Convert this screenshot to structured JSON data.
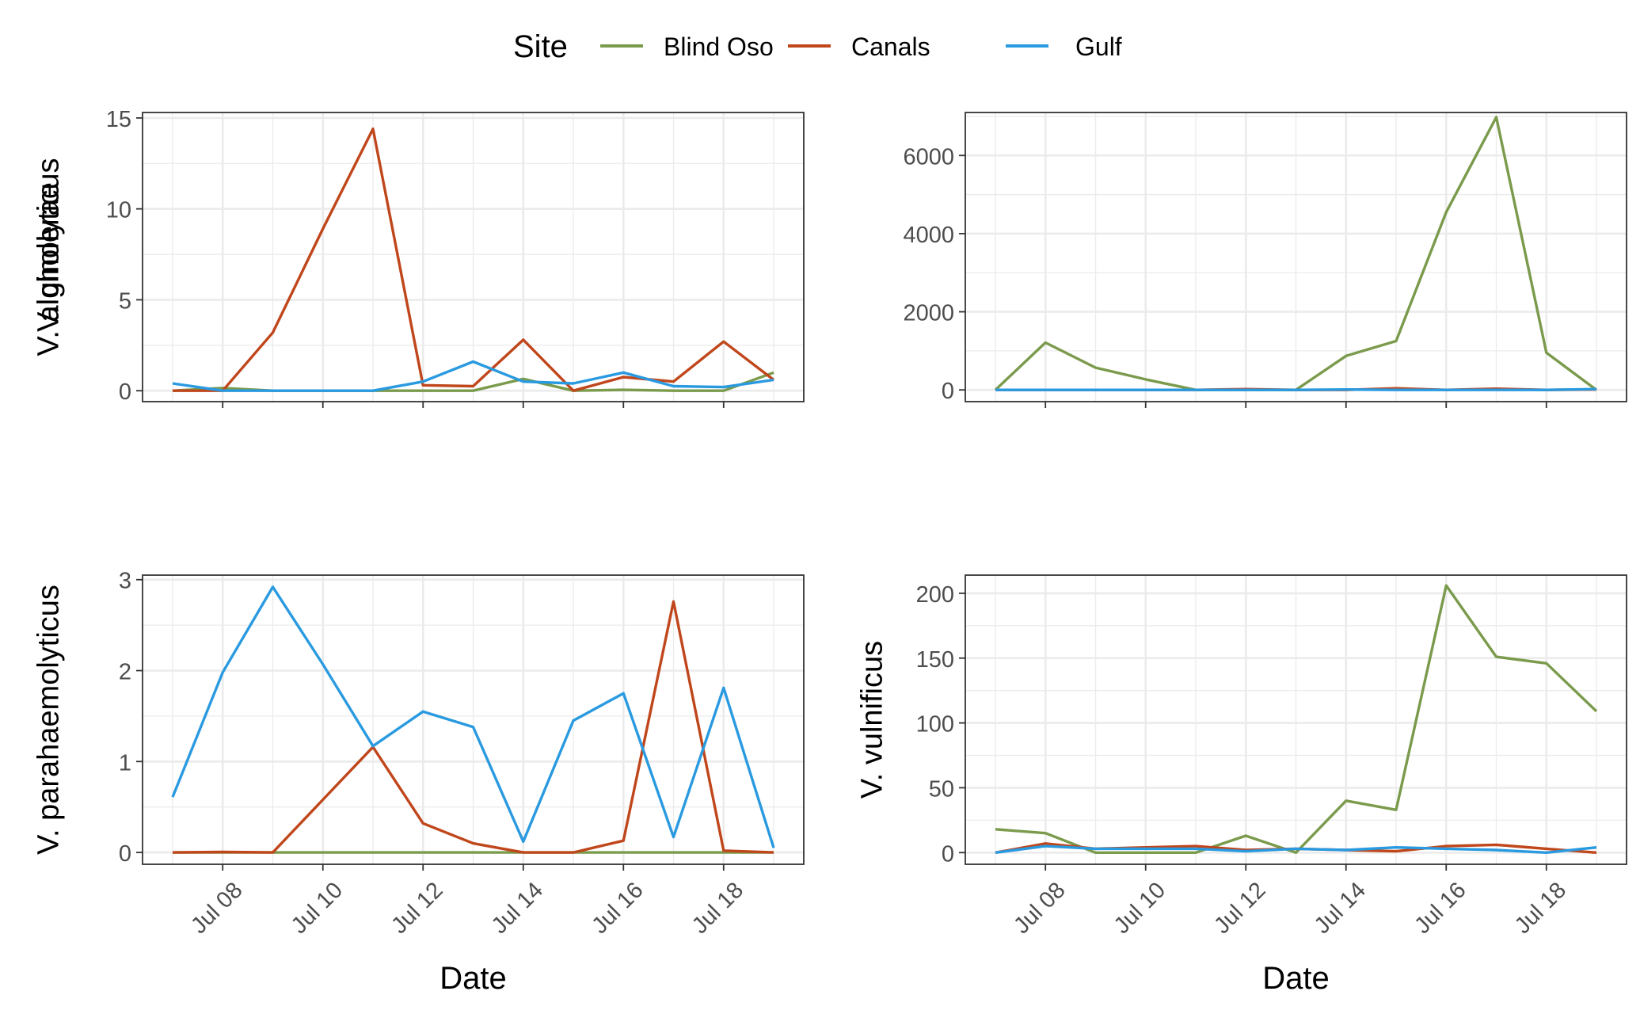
{
  "legend": {
    "title": "Site",
    "entries": [
      {
        "name": "Blind Oso",
        "color": "#7a9a4c"
      },
      {
        "name": "Canals",
        "color": "#c0461b"
      },
      {
        "name": "Gulf",
        "color": "#2a9ae0"
      }
    ]
  },
  "chart_data": [
    {
      "type": "line",
      "xlabel": "",
      "ylabel": "V. alginolyticus",
      "x": [
        "Jul 07",
        "Jul 08",
        "Jul 09",
        "Jul 10",
        "Jul 11",
        "Jul 12",
        "Jul 13",
        "Jul 14",
        "Jul 15",
        "Jul 16",
        "Jul 17",
        "Jul 18",
        "Jul 19"
      ],
      "xticks": [
        "Jul 08",
        "Jul 10",
        "Jul 12",
        "Jul 14",
        "Jul 16",
        "Jul 18"
      ],
      "ylim": [
        -0.6,
        15.3
      ],
      "yticks": [
        0,
        5,
        10,
        15
      ],
      "series": [
        {
          "name": "Blind Oso",
          "color": "#7a9a4c",
          "values": [
            0.0,
            0.15,
            0.0,
            0.0,
            0.0,
            0.0,
            0.0,
            0.65,
            0.0,
            0.05,
            0.0,
            0.0,
            1.0
          ]
        },
        {
          "name": "Canals",
          "color": "#c0461b",
          "values": [
            0.0,
            0.0,
            3.2,
            8.9,
            14.4,
            0.3,
            0.25,
            2.8,
            0.0,
            0.75,
            0.5,
            2.7,
            0.6
          ]
        },
        {
          "name": "Gulf",
          "color": "#2a9ae0",
          "values": [
            0.4,
            0.0,
            0.0,
            0.0,
            0.0,
            0.5,
            1.6,
            0.5,
            0.4,
            1.0,
            0.25,
            0.2,
            0.6
          ]
        }
      ]
    },
    {
      "type": "line",
      "xlabel": "",
      "ylabel": "V. cholerae",
      "x": [
        "Jul 07",
        "Jul 08",
        "Jul 09",
        "Jul 10",
        "Jul 11",
        "Jul 12",
        "Jul 13",
        "Jul 14",
        "Jul 15",
        "Jul 16",
        "Jul 17",
        "Jul 18",
        "Jul 19"
      ],
      "xticks": [
        "Jul 08",
        "Jul 10",
        "Jul 12",
        "Jul 14",
        "Jul 16",
        "Jul 18"
      ],
      "ylim": [
        -300,
        7100
      ],
      "yticks": [
        0,
        2000,
        4000,
        6000
      ],
      "series": [
        {
          "name": "Blind Oso",
          "color": "#7a9a4c",
          "values": [
            0,
            1210,
            570,
            270,
            0,
            0,
            0,
            870,
            1250,
            4550,
            6980,
            950,
            0
          ]
        },
        {
          "name": "Canals",
          "color": "#c0461b",
          "values": [
            0,
            0,
            0,
            0,
            0,
            20,
            0,
            0,
            40,
            0,
            30,
            0,
            10
          ]
        },
        {
          "name": "Gulf",
          "color": "#2a9ae0",
          "values": [
            0,
            0,
            0,
            0,
            0,
            0,
            0,
            10,
            0,
            0,
            0,
            0,
            20
          ]
        }
      ]
    },
    {
      "type": "line",
      "xlabel": "Date",
      "ylabel": "V. parahaemolyticus",
      "x": [
        "Jul 07",
        "Jul 08",
        "Jul 09",
        "Jul 10",
        "Jul 11",
        "Jul 12",
        "Jul 13",
        "Jul 14",
        "Jul 15",
        "Jul 16",
        "Jul 17",
        "Jul 18",
        "Jul 19"
      ],
      "xticks": [
        "Jul 08",
        "Jul 10",
        "Jul 12",
        "Jul 14",
        "Jul 16",
        "Jul 18"
      ],
      "ylim": [
        -0.13,
        3.05
      ],
      "yticks": [
        0,
        1,
        2,
        3
      ],
      "series": [
        {
          "name": "Blind Oso",
          "color": "#7a9a4c",
          "values": [
            0,
            0,
            0,
            0,
            0,
            0,
            0,
            0,
            0,
            0,
            0,
            0,
            0
          ]
        },
        {
          "name": "Canals",
          "color": "#c0461b",
          "values": [
            0,
            0.005,
            0,
            0.58,
            1.16,
            0.32,
            0.1,
            0,
            0,
            0.13,
            2.76,
            0.02,
            0
          ]
        },
        {
          "name": "Gulf",
          "color": "#2a9ae0",
          "values": [
            0.61,
            1.98,
            2.92,
            2.07,
            1.17,
            1.55,
            1.38,
            0.12,
            1.45,
            1.75,
            0.17,
            1.81,
            0.05
          ]
        }
      ]
    },
    {
      "type": "line",
      "xlabel": "Date",
      "ylabel": "V. vulnificus",
      "x": [
        "Jul 07",
        "Jul 08",
        "Jul 09",
        "Jul 10",
        "Jul 11",
        "Jul 12",
        "Jul 13",
        "Jul 14",
        "Jul 15",
        "Jul 16",
        "Jul 17",
        "Jul 18",
        "Jul 19"
      ],
      "xticks": [
        "Jul 08",
        "Jul 10",
        "Jul 12",
        "Jul 14",
        "Jul 16",
        "Jul 18"
      ],
      "ylim": [
        -9,
        214
      ],
      "yticks": [
        0,
        50,
        100,
        150,
        200
      ],
      "series": [
        {
          "name": "Blind Oso",
          "color": "#7a9a4c",
          "values": [
            18,
            15,
            0,
            0,
            0,
            13,
            0,
            40,
            33,
            206,
            151,
            146,
            109
          ]
        },
        {
          "name": "Canals",
          "color": "#c0461b",
          "values": [
            0,
            7,
            3,
            4,
            5,
            2,
            3,
            2,
            1,
            5,
            6,
            3,
            0
          ]
        },
        {
          "name": "Gulf",
          "color": "#2a9ae0",
          "values": [
            0,
            5,
            3,
            3,
            3,
            1,
            3,
            2,
            4,
            3,
            2,
            0,
            4
          ]
        }
      ]
    }
  ]
}
